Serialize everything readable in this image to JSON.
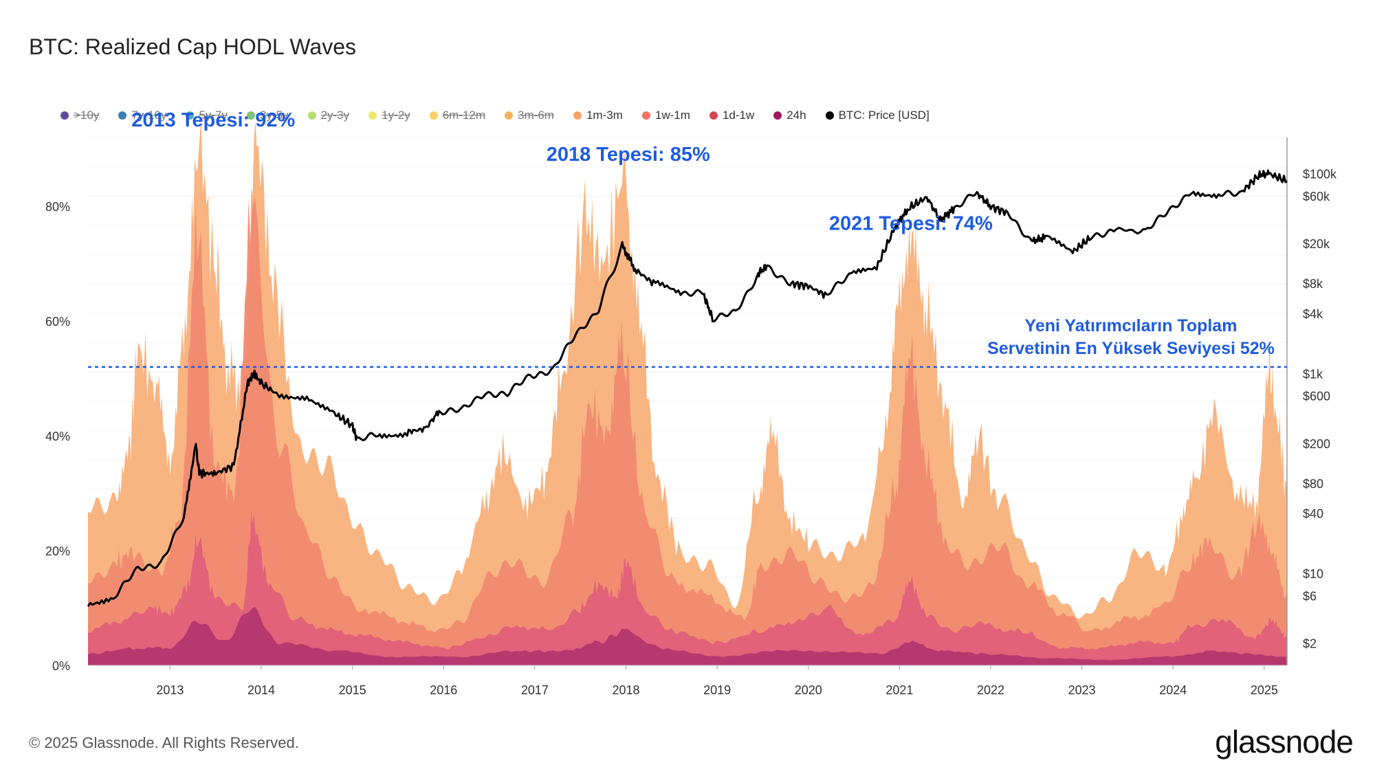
{
  "header": {
    "title": "BTC: Realized Cap HODL Waves"
  },
  "legend": [
    {
      "label": ">10y",
      "color": "#5b4b9a",
      "active": false
    },
    {
      "label": "7y-10y",
      "color": "#3f7fb0",
      "active": false
    },
    {
      "label": "5y-7y",
      "color": "#4fb3a9",
      "active": false
    },
    {
      "label": "3y-5y",
      "color": "#7cc57b",
      "active": false
    },
    {
      "label": "2y-3y",
      "color": "#b6dc72",
      "active": false
    },
    {
      "label": "1y-2y",
      "color": "#eaea6a",
      "active": false
    },
    {
      "label": "6m-12m",
      "color": "#f8d064",
      "active": false
    },
    {
      "label": "3m-6m",
      "color": "#f6b35a",
      "active": false
    },
    {
      "label": "1m-3m",
      "color": "#f7a36a",
      "active": true
    },
    {
      "label": "1w-1m",
      "color": "#f07360",
      "active": true
    },
    {
      "label": "1d-1w",
      "color": "#d9445a",
      "active": true
    },
    {
      "label": "24h",
      "color": "#a0185a",
      "active": true
    },
    {
      "label": "BTC: Price [USD]",
      "color": "#000000",
      "active": true
    }
  ],
  "chart_data": {
    "type": "area",
    "title": "BTC: Realized Cap HODL Waves",
    "x_ticks": [
      "2013",
      "2014",
      "2015",
      "2016",
      "2017",
      "2018",
      "2019",
      "2020",
      "2021",
      "2022",
      "2023",
      "2024",
      "2025"
    ],
    "xlim": [
      2012.1,
      2025.25
    ],
    "y_left": {
      "ticks": [
        "0%",
        "20%",
        "40%",
        "60%",
        "80%"
      ],
      "ylim": [
        0,
        92
      ]
    },
    "y_right": {
      "scale": "log",
      "ticks": [
        "$2",
        "$6",
        "$10",
        "$40",
        "$80",
        "$200",
        "$600",
        "$1k",
        "$4k",
        "$8k",
        "$20k",
        "$60k",
        "$100k"
      ]
    },
    "series": [
      {
        "name": "1m-3m",
        "color": "#f8b07a",
        "x": [
          2012.1,
          2012.4,
          2012.55,
          2012.65,
          2012.85,
          2013.0,
          2013.15,
          2013.3,
          2013.5,
          2013.62,
          2013.8,
          2013.95,
          2014.15,
          2014.4,
          2014.7,
          2015.0,
          2015.3,
          2015.6,
          2015.9,
          2016.2,
          2016.45,
          2016.65,
          2016.9,
          2017.1,
          2017.3,
          2017.55,
          2017.75,
          2017.98,
          2018.15,
          2018.35,
          2018.6,
          2018.9,
          2019.2,
          2019.45,
          2019.6,
          2019.8,
          2020.0,
          2020.3,
          2020.6,
          2020.85,
          2021.0,
          2021.15,
          2021.3,
          2021.5,
          2021.7,
          2021.85,
          2022.1,
          2022.4,
          2022.7,
          2023.0,
          2023.3,
          2023.6,
          2023.9,
          2024.1,
          2024.25,
          2024.45,
          2024.7,
          2024.9,
          2025.05,
          2025.15,
          2025.25
        ],
        "values": [
          28,
          30,
          38,
          55,
          48,
          35,
          60,
          92,
          70,
          52,
          48,
          90,
          65,
          40,
          34,
          25,
          20,
          13,
          11,
          17,
          28,
          37,
          28,
          32,
          50,
          78,
          70,
          85,
          60,
          32,
          20,
          18,
          10,
          30,
          41,
          25,
          22,
          18,
          22,
          40,
          62,
          74,
          62,
          45,
          28,
          40,
          28,
          20,
          12,
          8,
          12,
          20,
          16,
          25,
          32,
          44,
          30,
          28,
          52,
          42,
          30
        ]
      },
      {
        "name": "1w-1m",
        "color": "#f08a70",
        "x": [
          2012.1,
          2012.4,
          2012.6,
          2012.9,
          2013.1,
          2013.3,
          2013.5,
          2013.7,
          2013.9,
          2014.2,
          2014.5,
          2014.8,
          2015.1,
          2015.5,
          2015.9,
          2016.2,
          2016.5,
          2016.8,
          2017.1,
          2017.4,
          2017.6,
          2017.8,
          2017.95,
          2018.2,
          2018.5,
          2018.9,
          2019.3,
          2019.5,
          2019.8,
          2020.1,
          2020.4,
          2020.7,
          2020.95,
          2021.1,
          2021.3,
          2021.5,
          2021.8,
          2022.1,
          2022.4,
          2022.8,
          2023.1,
          2023.5,
          2023.9,
          2024.2,
          2024.4,
          2024.7,
          2024.95,
          2025.1,
          2025.25
        ],
        "values": [
          15,
          18,
          20,
          16,
          25,
          75,
          35,
          30,
          80,
          40,
          22,
          15,
          10,
          8,
          6,
          8,
          15,
          18,
          15,
          25,
          45,
          40,
          55,
          28,
          15,
          12,
          8,
          18,
          20,
          14,
          12,
          14,
          30,
          55,
          35,
          22,
          18,
          20,
          14,
          9,
          6,
          8,
          10,
          18,
          22,
          16,
          25,
          20,
          12
        ]
      },
      {
        "name": "1d-1w",
        "color": "#e0607a",
        "x": [
          2012.1,
          2012.5,
          2012.8,
          2013.0,
          2013.2,
          2013.3,
          2013.5,
          2013.8,
          2013.9,
          2014.1,
          2014.4,
          2014.8,
          2015.2,
          2015.6,
          2016.0,
          2016.5,
          2016.8,
          2017.2,
          2017.5,
          2017.7,
          2017.9,
          2018.0,
          2018.2,
          2018.5,
          2019.0,
          2019.5,
          2019.9,
          2020.2,
          2020.6,
          2020.95,
          2021.1,
          2021.3,
          2021.6,
          2021.9,
          2022.3,
          2022.8,
          2023.2,
          2023.6,
          2024.0,
          2024.2,
          2024.5,
          2024.9,
          2025.1,
          2025.25
        ],
        "values": [
          6,
          8,
          10,
          9,
          14,
          22,
          12,
          10,
          25,
          14,
          8,
          6,
          5,
          4,
          3,
          5,
          7,
          6,
          10,
          14,
          12,
          18,
          10,
          6,
          4,
          6,
          8,
          10,
          5,
          8,
          15,
          9,
          6,
          7,
          6,
          3,
          3,
          4,
          4,
          7,
          8,
          5,
          8,
          5
        ]
      },
      {
        "name": "24h",
        "color": "#b3366e",
        "x": [
          2012.1,
          2012.6,
          2013.0,
          2013.3,
          2013.6,
          2013.9,
          2014.2,
          2014.8,
          2015.5,
          2016.2,
          2016.8,
          2017.3,
          2017.7,
          2017.98,
          2018.4,
          2019.0,
          2019.6,
          2020.2,
          2020.8,
          2021.1,
          2021.5,
          2022.0,
          2022.6,
          2023.3,
          2024.0,
          2024.4,
          2024.9,
          2025.25
        ],
        "values": [
          2,
          3,
          3,
          8,
          4,
          10,
          4,
          2.5,
          1.5,
          1.5,
          2.5,
          2.5,
          4,
          6,
          3,
          1.5,
          2.5,
          2.5,
          2,
          4,
          2.5,
          2,
          1.2,
          1,
          1.5,
          2.5,
          2,
          1.5
        ]
      },
      {
        "name": "BTC: Price [USD]",
        "color": "#000000",
        "axis": "right-log",
        "x": [
          2012.1,
          2012.4,
          2012.65,
          2012.9,
          2013.15,
          2013.28,
          2013.32,
          2013.5,
          2013.7,
          2013.85,
          2013.92,
          2014.0,
          2014.2,
          2014.5,
          2014.8,
          2015.0,
          2015.05,
          2015.3,
          2015.6,
          2015.8,
          2015.95,
          2016.2,
          2016.45,
          2016.7,
          2016.95,
          2017.2,
          2017.45,
          2017.7,
          2017.96,
          2018.1,
          2018.3,
          2018.6,
          2018.85,
          2018.95,
          2019.2,
          2019.45,
          2019.55,
          2019.8,
          2020.0,
          2020.2,
          2020.45,
          2020.75,
          2020.95,
          2021.1,
          2021.3,
          2021.45,
          2021.6,
          2021.85,
          2022.0,
          2022.2,
          2022.45,
          2022.6,
          2022.9,
          2023.1,
          2023.35,
          2023.7,
          2023.95,
          2024.2,
          2024.5,
          2024.75,
          2024.95,
          2025.05,
          2025.25
        ],
        "values": [
          5,
          6,
          11,
          13,
          35,
          200,
          100,
          100,
          120,
          800,
          1000,
          800,
          600,
          600,
          400,
          300,
          220,
          240,
          260,
          280,
          420,
          420,
          650,
          610,
          960,
          1100,
          2400,
          4500,
          19000,
          11000,
          8000,
          6500,
          6300,
          3500,
          4000,
          10000,
          12000,
          8000,
          7500,
          6000,
          9500,
          11500,
          29000,
          45000,
          58000,
          34000,
          45000,
          64000,
          47000,
          40000,
          21000,
          23000,
          16500,
          23000,
          28000,
          26000,
          42000,
          68000,
          60000,
          65000,
          98000,
          100000,
          84000
        ]
      }
    ],
    "annotations": [
      {
        "text": "2013 Tepesi: 92%",
        "x": 2013.55,
        "y": 92
      },
      {
        "text": "2018 Tepesi: 85%",
        "x": 2018.1,
        "y": 86
      },
      {
        "text": "2021 Tepesi: 74%",
        "x": 2021.2,
        "y": 74
      }
    ],
    "reference_line": {
      "value": 52,
      "label_lines": [
        "Yeni Yatırımcıların Toplam",
        "Servetinin En Yüksek Seviyesi 52%"
      ],
      "color": "#1f5be0"
    }
  },
  "footer": {
    "copyright": "© 2025 Glassnode. All Rights Reserved.",
    "brand": "glassnode"
  }
}
